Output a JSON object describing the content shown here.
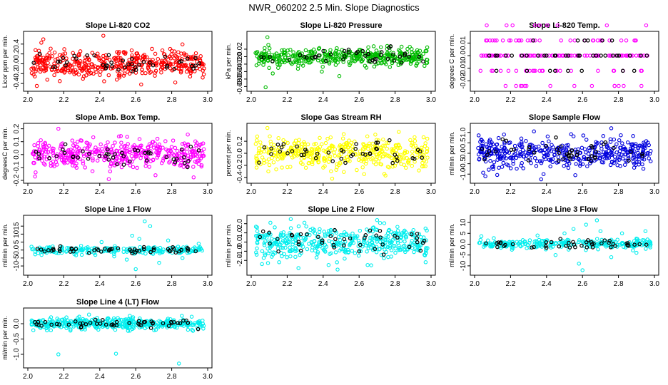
{
  "figure_title": "NWR_060202  2.5 Min. Slope Diagnostics",
  "chart_data": [
    {
      "type": "scatter",
      "title": "Slope Li-820 CO2",
      "ylabel": "Licor ppm per min.",
      "color": "#ff0000",
      "xlim": [
        2.0,
        3.0
      ],
      "ylim": [
        -0.5,
        0.6
      ],
      "xticks": [
        2.0,
        2.2,
        2.4,
        2.6,
        2.8,
        3.0
      ],
      "yticks": [
        -0.4,
        -0.2,
        0.0,
        0.2,
        0.4
      ],
      "spread": 0.14,
      "n": 420,
      "n_black": 45,
      "seed": 11,
      "outliers": [
        [
          2.42,
          0.57
        ],
        [
          2.05,
          -0.45
        ],
        [
          2.63,
          -0.42
        ],
        [
          2.82,
          -0.38
        ]
      ]
    },
    {
      "type": "scatter",
      "title": "Slope Li-820 Pressure",
      "ylabel": "kPa per min.",
      "color": "#00bb00",
      "xlim": [
        2.0,
        3.0
      ],
      "ylim": [
        -0.085,
        0.06
      ],
      "xticks": [
        2.0,
        2.2,
        2.4,
        2.6,
        2.8,
        3.0
      ],
      "yticks": [
        -0.08,
        -0.06,
        -0.04,
        -0.02,
        0.0,
        0.02
      ],
      "spread": 0.011,
      "n": 420,
      "n_black": 45,
      "seed": 23,
      "outliers": [
        [
          2.09,
          0.052
        ],
        [
          2.08,
          -0.082
        ],
        [
          2.12,
          -0.045
        ],
        [
          2.49,
          -0.052
        ],
        [
          2.15,
          -0.03
        ]
      ]
    },
    {
      "type": "scatter",
      "title": "Slope Li-820 Temp.",
      "ylabel": "degrees C per min.",
      "color": "#ff00ff",
      "xlim": [
        2.0,
        3.0
      ],
      "ylim": [
        -0.026,
        0.017
      ],
      "xticks": [
        2.0,
        2.2,
        2.4,
        2.6,
        2.8,
        3.0
      ],
      "yticks": [
        -0.02,
        -0.01,
        0.0,
        0.01
      ],
      "levels": [
        -0.024,
        -0.012,
        0.0,
        0.012,
        0.024
      ],
      "n": 170,
      "n_black": 40,
      "seed": 37
    },
    {
      "type": "scatter",
      "title": "Slope Amb. Box Temp.",
      "ylabel": "degreesC per min.",
      "color": "#ff00ff",
      "xlim": [
        2.0,
        3.0
      ],
      "ylim": [
        -0.2,
        0.22
      ],
      "xticks": [
        2.0,
        2.2,
        2.4,
        2.6,
        2.8,
        3.0
      ],
      "yticks": [
        -0.2,
        -0.1,
        0.0,
        0.1,
        0.2
      ],
      "spread": 0.055,
      "n": 420,
      "n_black": 45,
      "seed": 41,
      "outliers": [
        [
          2.17,
          0.2
        ],
        [
          2.04,
          -0.17
        ],
        [
          2.45,
          -0.19
        ],
        [
          2.71,
          -0.16
        ]
      ]
    },
    {
      "type": "scatter",
      "title": "Slope Gas Stream RH",
      "ylabel": "percent per min.",
      "color": "#ffff00",
      "xlim": [
        2.0,
        3.0
      ],
      "ylim": [
        -0.45,
        0.45
      ],
      "xticks": [
        2.0,
        2.2,
        2.4,
        2.6,
        2.8,
        3.0
      ],
      "yticks": [
        -0.4,
        -0.2,
        0.0,
        0.2
      ],
      "spread": 0.13,
      "n": 420,
      "n_black": 45,
      "seed": 53,
      "outliers": [
        [
          2.09,
          0.42
        ],
        [
          2.45,
          -0.42
        ]
      ]
    },
    {
      "type": "scatter",
      "title": "Slope Sample Flow",
      "ylabel": "ml/min per min.",
      "color": "#0000dd",
      "xlim": [
        2.0,
        3.0
      ],
      "ylim": [
        -1.3,
        1.3
      ],
      "xticks": [
        2.0,
        2.2,
        2.4,
        2.6,
        2.8,
        3.0
      ],
      "yticks": [
        -1.0,
        -0.5,
        0.0,
        0.5,
        1.0
      ],
      "spread": 0.32,
      "n": 420,
      "n_black": 45,
      "seed": 67,
      "outliers": [
        [
          2.33,
          1.05
        ],
        [
          2.76,
          1.2
        ],
        [
          2.06,
          -1.1
        ],
        [
          2.37,
          -1.25
        ],
        [
          2.56,
          -1.05
        ]
      ]
    },
    {
      "type": "scatter",
      "title": "Slope Line 1 Flow",
      "ylabel": "ml/min per min.",
      "color": "#00eeee",
      "xlim": [
        2.0,
        3.0
      ],
      "ylim": [
        -14,
        20
      ],
      "xticks": [
        2.0,
        2.2,
        2.4,
        2.6,
        2.8,
        3.0
      ],
      "yticks": [
        -10,
        -5,
        0,
        5,
        10,
        15
      ],
      "spread": 1.2,
      "n": 230,
      "n_black": 50,
      "seed": 71,
      "outliers": [
        [
          2.65,
          18
        ],
        [
          2.68,
          15
        ],
        [
          2.6,
          -12
        ],
        [
          2.58,
          9
        ],
        [
          2.62,
          7
        ],
        [
          2.73,
          -8
        ],
        [
          2.55,
          -6
        ],
        [
          2.78,
          6
        ],
        [
          2.86,
          -5
        ],
        [
          2.48,
          -4
        ],
        [
          2.41,
          5
        ],
        [
          2.3,
          -3
        ],
        [
          2.95,
          4
        ]
      ]
    },
    {
      "type": "scatter",
      "title": "Slope Line 2 Flow",
      "ylabel": "ml/min per min.",
      "color": "#00eeee",
      "xlim": [
        2.0,
        3.0
      ],
      "ylim": [
        -3.3,
        2.6
      ],
      "xticks": [
        2.0,
        2.2,
        2.4,
        2.6,
        2.8,
        3.0
      ],
      "yticks": [
        -2,
        -1,
        0,
        1,
        2
      ],
      "spread": 0.85,
      "n": 420,
      "n_black": 45,
      "seed": 83,
      "outliers": [
        [
          2.22,
          2.5
        ],
        [
          2.48,
          -3.0
        ],
        [
          2.43,
          -2.5
        ],
        [
          2.06,
          -2.4
        ],
        [
          2.97,
          -2.2
        ]
      ]
    },
    {
      "type": "scatter",
      "title": "Slope Line 3 Flow",
      "ylabel": "ml/min per min.",
      "color": "#00eeee",
      "xlim": [
        2.0,
        3.0
      ],
      "ylim": [
        -13,
        12
      ],
      "xticks": [
        2.0,
        2.2,
        2.4,
        2.6,
        2.8,
        3.0
      ],
      "yticks": [
        -10,
        -5,
        0,
        5,
        10
      ],
      "spread": 1.2,
      "n": 260,
      "n_black": 45,
      "seed": 97,
      "outliers": [
        [
          2.62,
          9
        ],
        [
          2.68,
          11
        ],
        [
          2.6,
          -12
        ],
        [
          2.58,
          -9
        ],
        [
          2.7,
          6
        ],
        [
          2.55,
          7
        ],
        [
          2.76,
          -6
        ],
        [
          2.82,
          5
        ],
        [
          2.9,
          -4
        ],
        [
          2.5,
          5
        ],
        [
          2.45,
          -5
        ],
        [
          2.35,
          4
        ],
        [
          2.95,
          6
        ]
      ]
    },
    {
      "type": "scatter",
      "title": "Slope Line 4 (LT) Flow",
      "ylabel": "ml/min per min.",
      "color": "#00eeee",
      "xlim": [
        2.0,
        3.0
      ],
      "ylim": [
        -1.35,
        0.42
      ],
      "xticks": [
        2.0,
        2.2,
        2.4,
        2.6,
        2.8,
        3.0
      ],
      "yticks": [
        -1.0,
        -0.5,
        0.0
      ],
      "spread": 0.09,
      "n": 420,
      "n_black": 50,
      "seed": 101,
      "outliers": [
        [
          2.17,
          -1.0
        ],
        [
          2.49,
          -0.98
        ],
        [
          2.84,
          -1.3
        ],
        [
          2.34,
          0.3
        ]
      ]
    }
  ]
}
